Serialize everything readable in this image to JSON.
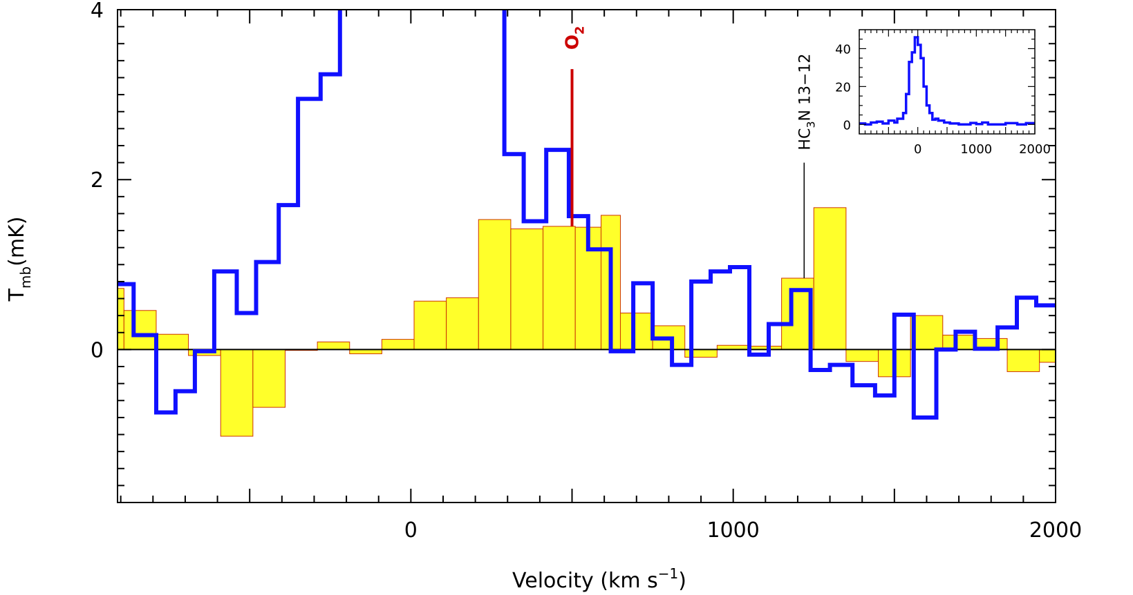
{
  "chart_data": [
    {
      "type": "line",
      "title": "",
      "xlabel": "Velocity (km s",
      "xlabel_superscript": "−1",
      "xlabel_suffix": ")",
      "ylabel": "T",
      "ylabel_subscript": "mb",
      "ylabel_suffix": "(mK)",
      "xlim": [
        -910,
        2000
      ],
      "ylim": [
        -1.8,
        4
      ],
      "x_ticks": [
        0,
        1000,
        2000
      ],
      "x_tick_labels": [
        "0",
        "1000",
        "2000"
      ],
      "y_ticks": [
        0,
        2,
        4
      ],
      "y_tick_labels": [
        "0",
        "2",
        "4"
      ],
      "zero_line": true,
      "grid": false,
      "legend": "none",
      "colors": {
        "histogram_fill": "#ffff2a",
        "histogram_edge": "#cc3300",
        "line": "#1010ff",
        "o2_marker": "#cc0000",
        "hc3n_marker": "#000000"
      },
      "series": [
        {
          "style": "filled-histogram",
          "bins": [
            {
              "x0": -910,
              "x1": -890,
              "y": 0.72
            },
            {
              "x0": -890,
              "x1": -790,
              "y": 0.46
            },
            {
              "x0": -790,
              "x1": -690,
              "y": 0.18
            },
            {
              "x0": -690,
              "x1": -590,
              "y": -0.07
            },
            {
              "x0": -590,
              "x1": -490,
              "y": -1.02
            },
            {
              "x0": -490,
              "x1": -390,
              "y": -0.68
            },
            {
              "x0": -390,
              "x1": -290,
              "y": -0.01
            },
            {
              "x0": -290,
              "x1": -190,
              "y": 0.09
            },
            {
              "x0": -190,
              "x1": -90,
              "y": -0.05
            },
            {
              "x0": -90,
              "x1": 10,
              "y": 0.12
            },
            {
              "x0": 10,
              "x1": 110,
              "y": 0.57
            },
            {
              "x0": 110,
              "x1": 210,
              "y": 0.61
            },
            {
              "x0": 210,
              "x1": 310,
              "y": 1.53
            },
            {
              "x0": 310,
              "x1": 410,
              "y": 1.42
            },
            {
              "x0": 410,
              "x1": 510,
              "y": 1.45
            },
            {
              "x0": 510,
              "x1": 590,
              "y": 1.44
            },
            {
              "x0": 590,
              "x1": 650,
              "y": 1.58
            },
            {
              "x0": 650,
              "x1": 750,
              "y": 0.43
            },
            {
              "x0": 750,
              "x1": 850,
              "y": 0.28
            },
            {
              "x0": 850,
              "x1": 950,
              "y": -0.09
            },
            {
              "x0": 950,
              "x1": 1050,
              "y": 0.05
            },
            {
              "x0": 1050,
              "x1": 1150,
              "y": 0.04
            },
            {
              "x0": 1150,
              "x1": 1250,
              "y": 0.84
            },
            {
              "x0": 1250,
              "x1": 1350,
              "y": 1.67
            },
            {
              "x0": 1350,
              "x1": 1450,
              "y": -0.14
            },
            {
              "x0": 1450,
              "x1": 1550,
              "y": -0.32
            },
            {
              "x0": 1550,
              "x1": 1650,
              "y": 0.4
            },
            {
              "x0": 1650,
              "x1": 1750,
              "y": 0.17
            },
            {
              "x0": 1750,
              "x1": 1850,
              "y": 0.13
            },
            {
              "x0": 1850,
              "x1": 1950,
              "y": -0.26
            },
            {
              "x0": 1950,
              "x1": 2000,
              "y": -0.15
            }
          ]
        },
        {
          "style": "step-line",
          "points": [
            [
              -910,
              0.77
            ],
            [
              -860,
              0.77
            ],
            [
              -860,
              0.17
            ],
            [
              -790,
              0.17
            ],
            [
              -790,
              -0.74
            ],
            [
              -730,
              -0.74
            ],
            [
              -730,
              -0.49
            ],
            [
              -670,
              -0.49
            ],
            [
              -670,
              -0.02
            ],
            [
              -610,
              -0.02
            ],
            [
              -610,
              0.92
            ],
            [
              -540,
              0.92
            ],
            [
              -540,
              0.43
            ],
            [
              -480,
              0.43
            ],
            [
              -480,
              1.03
            ],
            [
              -410,
              1.03
            ],
            [
              -410,
              1.7
            ],
            [
              -350,
              1.7
            ],
            [
              -350,
              2.95
            ],
            [
              -280,
              2.95
            ],
            [
              -280,
              3.24
            ],
            [
              -220,
              3.24
            ],
            [
              -220,
              4.0
            ]
          ]
        },
        {
          "style": "step-line",
          "points": [
            [
              290,
              4.0
            ],
            [
              290,
              2.3
            ],
            [
              350,
              2.3
            ],
            [
              350,
              1.51
            ],
            [
              420,
              1.51
            ],
            [
              420,
              2.35
            ],
            [
              490,
              2.35
            ],
            [
              490,
              1.57
            ],
            [
              550,
              1.57
            ],
            [
              550,
              1.18
            ],
            [
              620,
              1.18
            ],
            [
              620,
              -0.02
            ],
            [
              690,
              -0.02
            ],
            [
              690,
              0.78
            ],
            [
              750,
              0.78
            ],
            [
              750,
              0.13
            ],
            [
              810,
              0.13
            ],
            [
              810,
              -0.18
            ],
            [
              870,
              -0.18
            ],
            [
              870,
              0.8
            ],
            [
              930,
              0.8
            ],
            [
              930,
              0.92
            ],
            [
              990,
              0.92
            ],
            [
              990,
              0.97
            ],
            [
              1050,
              0.97
            ],
            [
              1050,
              -0.06
            ],
            [
              1110,
              -0.06
            ],
            [
              1110,
              0.3
            ],
            [
              1180,
              0.3
            ],
            [
              1180,
              0.7
            ],
            [
              1240,
              0.7
            ],
            [
              1240,
              -0.24
            ],
            [
              1300,
              -0.24
            ],
            [
              1300,
              -0.18
            ],
            [
              1370,
              -0.18
            ],
            [
              1370,
              -0.42
            ],
            [
              1440,
              -0.42
            ],
            [
              1440,
              -0.54
            ],
            [
              1500,
              -0.54
            ],
            [
              1500,
              0.41
            ],
            [
              1560,
              0.41
            ],
            [
              1560,
              -0.8
            ],
            [
              1630,
              -0.8
            ],
            [
              1630,
              0.0
            ],
            [
              1690,
              0.0
            ],
            [
              1690,
              0.21
            ],
            [
              1750,
              0.21
            ],
            [
              1750,
              0.01
            ],
            [
              1820,
              0.01
            ],
            [
              1820,
              0.26
            ],
            [
              1880,
              0.26
            ],
            [
              1880,
              0.61
            ],
            [
              1940,
              0.61
            ],
            [
              1940,
              0.52
            ],
            [
              2000,
              0.52
            ]
          ]
        }
      ],
      "annotations": [
        {
          "label": "O",
          "label_subscript": "2",
          "x": 500,
          "y_from": 1.45,
          "y_to": 3.3
        },
        {
          "label": "HC",
          "label_subscript": "3",
          "label_suffix": "N 13−12",
          "x": 1220,
          "y_from": 0.84,
          "y_to": 2.2
        }
      ]
    },
    {
      "type": "line",
      "title": "",
      "xlim": [
        -1000,
        2000
      ],
      "ylim": [
        -5,
        50
      ],
      "x_ticks": [
        0,
        1000,
        2000
      ],
      "x_tick_labels": [
        "0",
        "1000",
        "2000"
      ],
      "y_ticks": [
        0,
        20,
        40
      ],
      "y_tick_labels": [
        "0",
        "20",
        "40"
      ],
      "legend": "none",
      "series": [
        {
          "style": "step-line",
          "points": [
            [
              -1000,
              0.5
            ],
            [
              -900,
              0.5
            ],
            [
              -900,
              0
            ],
            [
              -800,
              0
            ],
            [
              -800,
              1
            ],
            [
              -700,
              1
            ],
            [
              -700,
              1.5
            ],
            [
              -600,
              1.5
            ],
            [
              -600,
              0.5
            ],
            [
              -500,
              0.5
            ],
            [
              -500,
              2
            ],
            [
              -400,
              2
            ],
            [
              -400,
              1
            ],
            [
              -350,
              1
            ],
            [
              -350,
              3
            ],
            [
              -250,
              3
            ],
            [
              -250,
              6
            ],
            [
              -200,
              6
            ],
            [
              -200,
              16
            ],
            [
              -150,
              16
            ],
            [
              -150,
              33
            ],
            [
              -100,
              33
            ],
            [
              -100,
              38
            ],
            [
              -50,
              38
            ],
            [
              -50,
              46
            ],
            [
              0,
              46
            ],
            [
              0,
              42
            ],
            [
              50,
              42
            ],
            [
              50,
              35
            ],
            [
              100,
              35
            ],
            [
              100,
              20
            ],
            [
              150,
              20
            ],
            [
              150,
              10
            ],
            [
              200,
              10
            ],
            [
              200,
              6
            ],
            [
              250,
              6
            ],
            [
              250,
              2.5
            ],
            [
              300,
              2.5
            ],
            [
              300,
              3
            ],
            [
              350,
              3
            ],
            [
              350,
              2
            ],
            [
              450,
              2
            ],
            [
              450,
              1
            ],
            [
              550,
              1
            ],
            [
              550,
              0.5
            ],
            [
              700,
              0.5
            ],
            [
              700,
              0
            ],
            [
              900,
              0
            ],
            [
              900,
              0.8
            ],
            [
              1000,
              0.8
            ],
            [
              1000,
              0.2
            ],
            [
              1100,
              0.2
            ],
            [
              1100,
              1
            ],
            [
              1200,
              1
            ],
            [
              1200,
              0
            ],
            [
              1500,
              0
            ],
            [
              1500,
              0.7
            ],
            [
              1700,
              0.7
            ],
            [
              1700,
              0
            ],
            [
              1850,
              0
            ],
            [
              1850,
              0.7
            ],
            [
              2000,
              0.7
            ]
          ]
        }
      ]
    }
  ]
}
